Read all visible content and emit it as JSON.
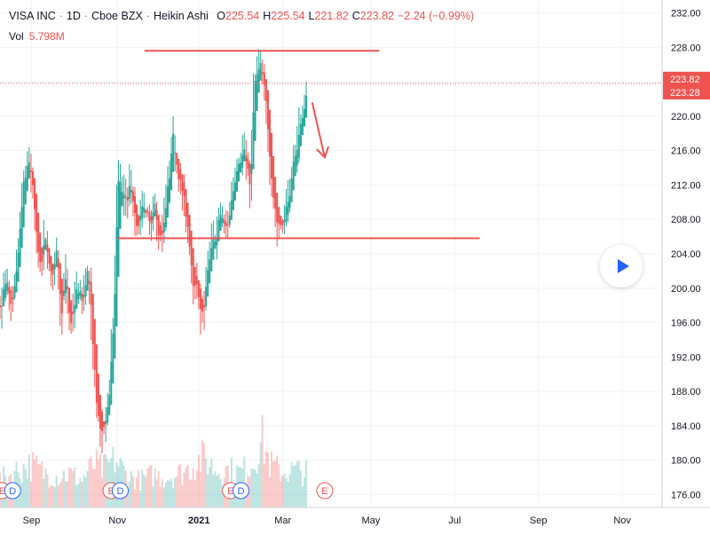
{
  "legend": {
    "symbol": "VISA INC",
    "interval": "1D",
    "exchange": "Cboe BZX",
    "chart_style": "Heikin Ashi",
    "open_key": "O",
    "open": "225.54",
    "high_key": "H",
    "high": "225.54",
    "low_key": "L",
    "low": "221.82",
    "close_key": "C",
    "close": "223.82",
    "change": "−2.24 (−0.99%)"
  },
  "volume": {
    "label": "Vol",
    "value": "5.798M"
  },
  "colors": {
    "up": "#26a69a",
    "down": "#ef5350",
    "annotation": "#ef5350",
    "grid": "#f0f3fa",
    "axis_text": "#131722",
    "last_price_tag": "#ef5350"
  },
  "chart_data": {
    "type": "candlestick",
    "title": "",
    "y_ticks": [
      "232.00",
      "228.00",
      "224.00",
      "220.00",
      "216.00",
      "212.00",
      "208.00",
      "204.00",
      "200.00",
      "196.00",
      "192.00",
      "188.00",
      "184.00",
      "180.00",
      "176.00"
    ],
    "ylim": [
      174.5,
      233.5
    ],
    "x_labels": [
      "Sep",
      "Nov",
      "2021",
      "Mar",
      "May",
      "Jul",
      "Sep",
      "Nov"
    ],
    "x_label_positions": [
      -0.5,
      1.55,
      3.5,
      5.5,
      7.6,
      9.6,
      11.6,
      13.6
    ],
    "xlim": [
      -1.25,
      14.55
    ],
    "price_labels": [
      {
        "value": 223.82,
        "text": "223.82"
      },
      {
        "value": 223.28,
        "text": "223.28"
      }
    ],
    "anchors": [
      [
        -1.25,
        198
      ],
      [
        -1.1,
        201
      ],
      [
        -1.0,
        196
      ],
      [
        -0.85,
        203
      ],
      [
        -0.72,
        211
      ],
      [
        -0.6,
        215
      ],
      [
        -0.5,
        212
      ],
      [
        -0.4,
        206
      ],
      [
        -0.3,
        202
      ],
      [
        -0.18,
        206
      ],
      [
        -0.05,
        201
      ],
      [
        0.1,
        205
      ],
      [
        0.2,
        197
      ],
      [
        0.3,
        202
      ],
      [
        0.42,
        194
      ],
      [
        0.55,
        200
      ],
      [
        0.7,
        198
      ],
      [
        0.85,
        203
      ],
      [
        0.95,
        192
      ],
      [
        1.05,
        186
      ],
      [
        1.15,
        183
      ],
      [
        1.25,
        184
      ],
      [
        1.37,
        190
      ],
      [
        1.45,
        197
      ],
      [
        1.55,
        213
      ],
      [
        1.7,
        210
      ],
      [
        1.85,
        212
      ],
      [
        2.0,
        206
      ],
      [
        2.15,
        210
      ],
      [
        2.3,
        207
      ],
      [
        2.45,
        209
      ],
      [
        2.58,
        205
      ],
      [
        2.7,
        209
      ],
      [
        2.85,
        217
      ],
      [
        3.0,
        214
      ],
      [
        3.12,
        210
      ],
      [
        3.25,
        205
      ],
      [
        3.35,
        201
      ],
      [
        3.45,
        199
      ],
      [
        3.55,
        197
      ],
      [
        3.68,
        201
      ],
      [
        3.8,
        205
      ],
      [
        3.9,
        206
      ],
      [
        4.0,
        209
      ],
      [
        4.12,
        206
      ],
      [
        4.25,
        210
      ],
      [
        4.4,
        215
      ],
      [
        4.55,
        216
      ],
      [
        4.7,
        211
      ],
      [
        4.8,
        223
      ],
      [
        4.92,
        226
      ],
      [
        5.0,
        224
      ],
      [
        5.1,
        220
      ],
      [
        5.22,
        213
      ],
      [
        5.35,
        207
      ],
      [
        5.5,
        208
      ],
      [
        5.7,
        212
      ],
      [
        5.85,
        218
      ],
      [
        6.0,
        221
      ],
      [
        6.1,
        225
      ]
    ],
    "volume_anchors": [
      [
        -1.25,
        0.22
      ],
      [
        -0.8,
        0.3
      ],
      [
        -0.5,
        0.34
      ],
      [
        -0.2,
        0.28
      ],
      [
        0.1,
        0.25
      ],
      [
        0.4,
        0.27
      ],
      [
        0.7,
        0.22
      ],
      [
        1.0,
        0.35
      ],
      [
        1.2,
        0.3
      ],
      [
        1.5,
        0.38
      ],
      [
        1.8,
        0.25
      ],
      [
        2.1,
        0.22
      ],
      [
        2.4,
        0.26
      ],
      [
        2.7,
        0.24
      ],
      [
        3.0,
        0.27
      ],
      [
        3.3,
        0.32
      ],
      [
        3.6,
        0.4
      ],
      [
        3.9,
        0.3
      ],
      [
        4.2,
        0.3
      ],
      [
        4.5,
        0.28
      ],
      [
        4.8,
        0.36
      ],
      [
        5.0,
        0.55
      ],
      [
        5.2,
        0.34
      ],
      [
        5.5,
        0.28
      ],
      [
        5.8,
        0.3
      ],
      [
        6.1,
        0.27
      ]
    ],
    "annotations": [
      {
        "type": "hline",
        "x1": 2.2,
        "x2": 7.8,
        "y": 227.6
      },
      {
        "type": "hline",
        "x1": 1.55,
        "x2": 10.2,
        "y": 205.8
      },
      {
        "type": "arrow",
        "x1": 6.2,
        "y1": 221.6,
        "x2": 6.5,
        "y2": 215.2
      }
    ],
    "event_markers": [
      {
        "x": -1.2,
        "label": "E",
        "kind": "earnings"
      },
      {
        "x": -0.95,
        "label": "D",
        "kind": "dividend"
      },
      {
        "x": 1.4,
        "label": "E",
        "kind": "earnings"
      },
      {
        "x": 1.62,
        "label": "D",
        "kind": "dividend"
      },
      {
        "x": 4.25,
        "label": "E",
        "kind": "earnings"
      },
      {
        "x": 4.5,
        "label": "D",
        "kind": "dividend"
      },
      {
        "x": 6.5,
        "label": "E",
        "kind": "earnings"
      }
    ]
  }
}
